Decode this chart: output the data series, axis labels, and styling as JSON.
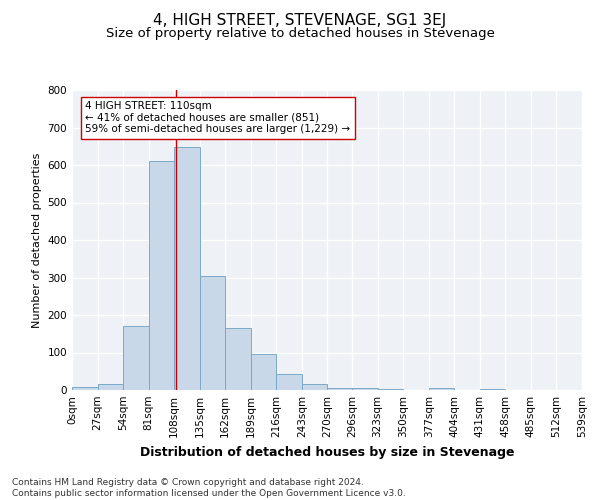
{
  "title": "4, HIGH STREET, STEVENAGE, SG1 3EJ",
  "subtitle": "Size of property relative to detached houses in Stevenage",
  "xlabel": "Distribution of detached houses by size in Stevenage",
  "ylabel": "Number of detached properties",
  "bar_edges": [
    0,
    27,
    54,
    81,
    108,
    135,
    162,
    189,
    216,
    243,
    270,
    296,
    323,
    350,
    377,
    404,
    431,
    458,
    485,
    512,
    539
  ],
  "bar_heights": [
    7,
    15,
    170,
    612,
    648,
    305,
    165,
    97,
    42,
    15,
    5,
    5,
    4,
    0,
    5,
    0,
    3,
    0,
    0,
    0
  ],
  "bar_facecolor": "#c8d8e8",
  "bar_edgecolor": "#7aaac8",
  "property_line_x": 110,
  "property_line_color": "#cc0000",
  "annotation_text": "4 HIGH STREET: 110sqm\n← 41% of detached houses are smaller (851)\n59% of semi-detached houses are larger (1,229) →",
  "annotation_box_edgecolor": "#cc0000",
  "annotation_box_facecolor": "#ffffff",
  "ylim": [
    0,
    800
  ],
  "yticks": [
    0,
    100,
    200,
    300,
    400,
    500,
    600,
    700,
    800
  ],
  "background_color": "#eef2f6",
  "grid_color": "#ffffff",
  "title_fontsize": 11,
  "subtitle_fontsize": 9.5,
  "xlabel_fontsize": 9,
  "ylabel_fontsize": 8,
  "tick_fontsize": 7.5,
  "footer_text": "Contains HM Land Registry data © Crown copyright and database right 2024.\nContains public sector information licensed under the Open Government Licence v3.0.",
  "footer_fontsize": 6.5
}
